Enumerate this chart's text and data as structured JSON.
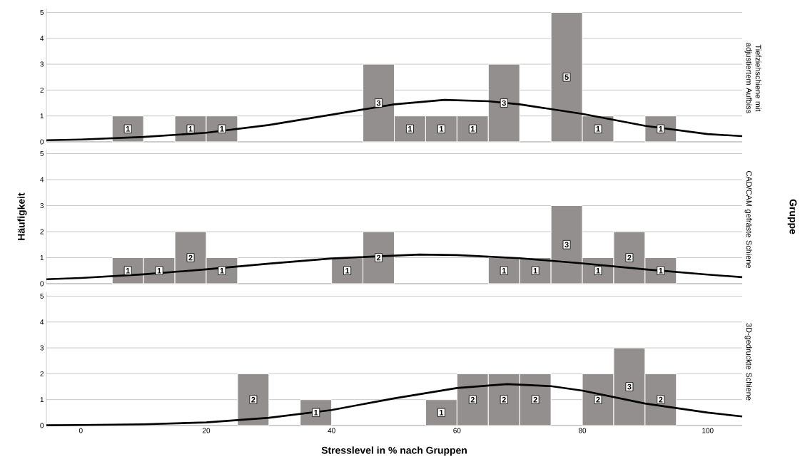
{
  "chart_data": [
    {
      "type": "histogram",
      "title": "Tiefziehschiene mit adjustiertem Aufbiss",
      "bins": [
        5,
        10,
        15,
        20,
        25,
        30,
        35,
        40,
        45,
        50,
        55,
        60,
        65,
        70,
        75,
        80,
        85,
        90,
        95
      ],
      "values": [
        1,
        0,
        1,
        1,
        0,
        0,
        0,
        0,
        3,
        1,
        1,
        1,
        3,
        0,
        5,
        1,
        0,
        1
      ],
      "color": "#948f8f",
      "value_labels": [
        "1",
        null,
        "1",
        "1",
        null,
        null,
        null,
        null,
        "3",
        "1",
        "1",
        "1",
        "3",
        null,
        "5",
        "1",
        null,
        "1"
      ],
      "series": [
        {
          "type": "line",
          "color": "#000000",
          "x": [
            -5.5,
            0,
            10,
            20,
            30,
            40,
            50,
            58,
            65,
            70,
            80,
            90,
            100,
            105.5
          ],
          "values": [
            0.06,
            0.09,
            0.19,
            0.35,
            0.65,
            1.05,
            1.45,
            1.62,
            1.57,
            1.45,
            1.08,
            0.62,
            0.3,
            0.22
          ]
        }
      ],
      "xlim": [
        -5.5,
        105.5
      ],
      "ylim": [
        0,
        5.15
      ],
      "yticks": [
        0,
        1,
        2,
        3,
        4,
        5
      ],
      "grid": "y",
      "tick_labels": "y"
    },
    {
      "type": "histogram",
      "title": "CAD/CAM gefräste Schiene",
      "ylabel": "Häufigkeit",
      "y2label": "Gruppe",
      "bins": [
        5,
        10,
        15,
        20,
        25,
        30,
        35,
        40,
        45,
        50,
        55,
        60,
        65,
        70,
        75,
        80,
        85,
        90,
        95
      ],
      "values": [
        1,
        1,
        2,
        1,
        0,
        0,
        0,
        1,
        2,
        0,
        0,
        0,
        1,
        1,
        3,
        1,
        2,
        1
      ],
      "color": "#948f8f",
      "value_labels": [
        "1",
        "1",
        "2",
        "1",
        null,
        null,
        null,
        "1",
        "2",
        null,
        null,
        null,
        "1",
        "1",
        "3",
        "1",
        "2",
        "1"
      ],
      "series": [
        {
          "type": "line",
          "color": "#000000",
          "x": [
            -5.5,
            0,
            10,
            20,
            30,
            40,
            54,
            60,
            70,
            80,
            90,
            100,
            105.5
          ],
          "values": [
            0.17,
            0.22,
            0.36,
            0.55,
            0.77,
            0.97,
            1.12,
            1.1,
            0.98,
            0.78,
            0.55,
            0.35,
            0.25
          ]
        }
      ],
      "xlim": [
        -5.5,
        105.5
      ],
      "ylim": [
        0,
        5.15
      ],
      "yticks": [
        0,
        1,
        2,
        3,
        4,
        5
      ],
      "grid": "y",
      "tick_labels": "y"
    },
    {
      "type": "histogram",
      "title": "3D-gedruckte Schiene",
      "xlabel": "Stresslevel in % nach Gruppen",
      "bins": [
        5,
        10,
        15,
        20,
        25,
        30,
        35,
        40,
        45,
        50,
        55,
        60,
        65,
        70,
        75,
        80,
        85,
        90,
        95
      ],
      "values": [
        0,
        0,
        0,
        0,
        2,
        0,
        1,
        0,
        0,
        0,
        1,
        2,
        2,
        2,
        0,
        2,
        3,
        2
      ],
      "color": "#948f8f",
      "value_labels": [
        null,
        null,
        null,
        null,
        "2",
        null,
        "1",
        null,
        null,
        null,
        "1",
        "2",
        "2",
        "2",
        null,
        "2",
        "3",
        "2"
      ],
      "series": [
        {
          "type": "line",
          "color": "#000000",
          "x": [
            -5.5,
            0,
            10,
            20,
            30,
            40,
            50,
            60,
            68,
            75,
            80,
            90,
            100,
            105.5
          ],
          "values": [
            0.01,
            0.02,
            0.05,
            0.12,
            0.3,
            0.6,
            1.05,
            1.45,
            1.6,
            1.52,
            1.35,
            0.85,
            0.5,
            0.35
          ]
        }
      ],
      "xlim": [
        -5.5,
        105.5
      ],
      "xticks": [
        0,
        20,
        40,
        60,
        80,
        100
      ],
      "ylim": [
        0,
        5.15
      ],
      "yticks": [
        0,
        1,
        2,
        3,
        4,
        5
      ],
      "grid": "y"
    }
  ]
}
